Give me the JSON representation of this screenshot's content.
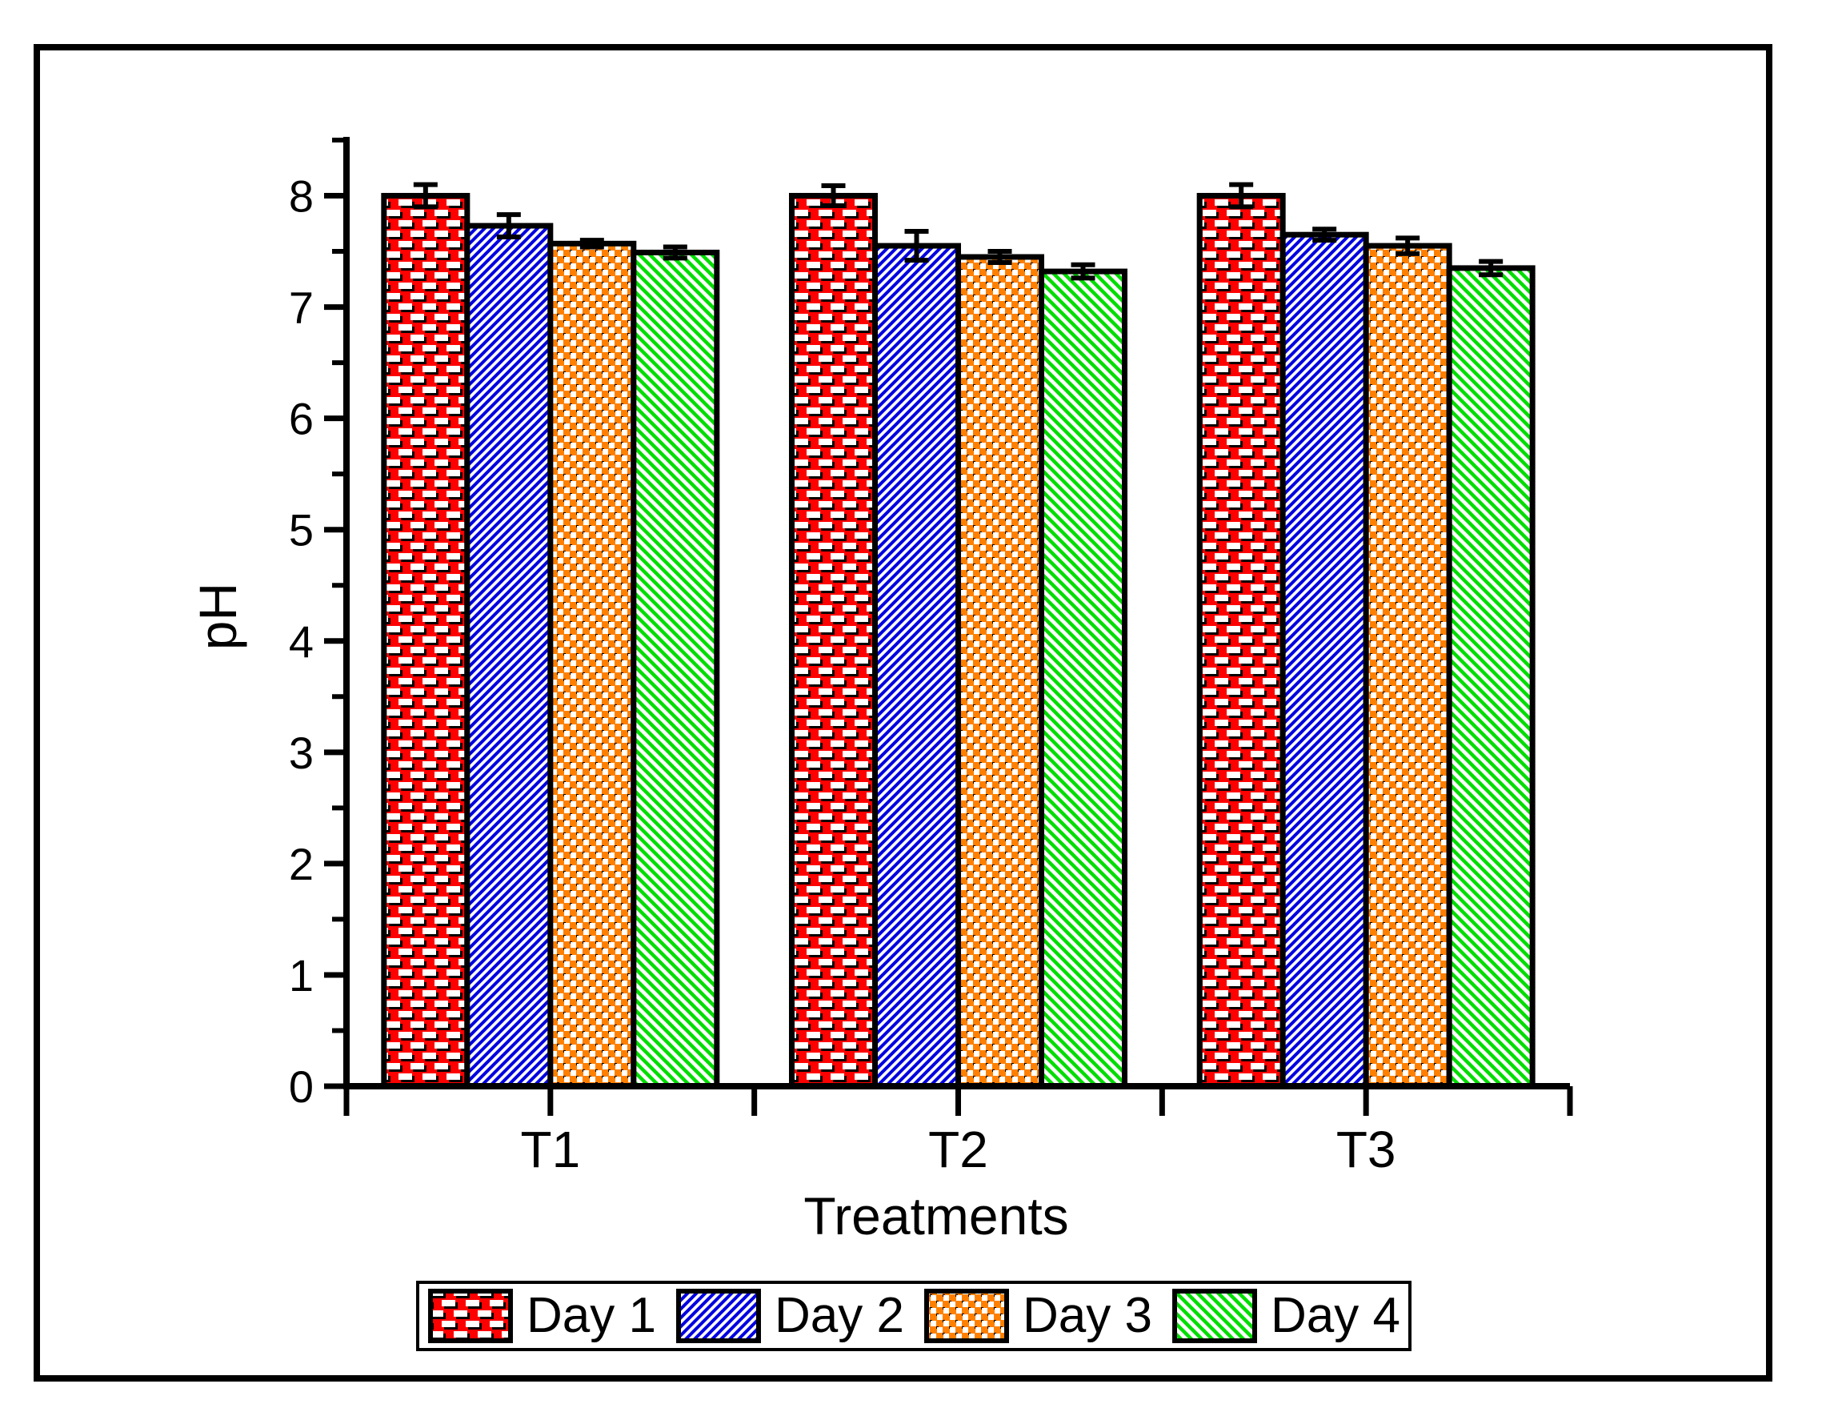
{
  "figure": {
    "background": "#FFFFFF",
    "frame_color": "#000000",
    "ink_color": "#000000"
  },
  "chart_data": {
    "type": "bar",
    "title": "",
    "xlabel": "Treatments",
    "ylabel": "pH",
    "categories": [
      "T1",
      "T2",
      "T3"
    ],
    "series": [
      {
        "name": "Day 1",
        "color": "#FF0000",
        "pattern": "white-dashes-on-red",
        "values": [
          8.0,
          8.0,
          8.0
        ],
        "errors": [
          0.1,
          0.09,
          0.1
        ]
      },
      {
        "name": "Day 2",
        "color": "#0000E0",
        "pattern": "blue-diagonal-up-hatch",
        "values": [
          7.73,
          7.55,
          7.65
        ],
        "errors": [
          0.1,
          0.13,
          0.05
        ]
      },
      {
        "name": "Day 3",
        "color": "#FF8000",
        "pattern": "orange-checker-cross",
        "values": [
          7.57,
          7.45,
          7.55
        ],
        "errors": [
          0.03,
          0.05,
          0.07
        ]
      },
      {
        "name": "Day 4",
        "color": "#00DD00",
        "pattern": "green-diagonal-down-hatch",
        "values": [
          7.49,
          7.32,
          7.35
        ],
        "errors": [
          0.05,
          0.06,
          0.06
        ]
      }
    ],
    "ylim": [
      0,
      8.5
    ],
    "yticks": [
      0,
      1,
      2,
      3,
      4,
      5,
      6,
      7,
      8
    ],
    "minor_tick_step": 0.5,
    "grid": false,
    "error_bars": true,
    "legend_position": "bottom"
  }
}
